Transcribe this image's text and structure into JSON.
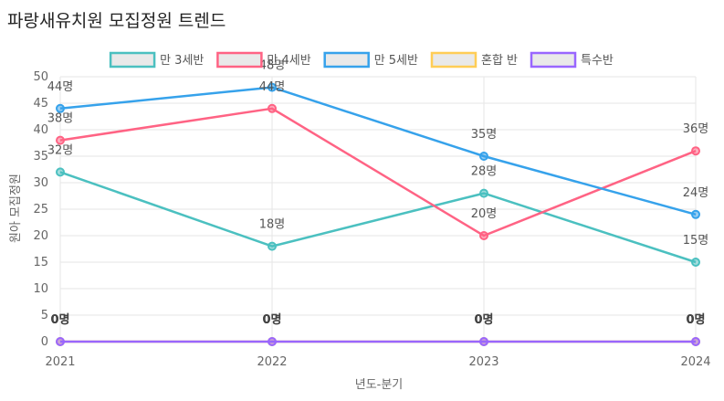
{
  "page": {
    "title": "파랑새유치원 모집정원 트렌드"
  },
  "chart_data": {
    "type": "line",
    "title": "파랑새유치원 모집정원 트렌드",
    "xlabel": "년도-분기",
    "ylabel": "원아 모집정원",
    "categories": [
      "2021",
      "2022",
      "2023",
      "2024"
    ],
    "ylim": [
      0,
      50
    ],
    "yticks": [
      0,
      5,
      10,
      15,
      20,
      25,
      30,
      35,
      40,
      45,
      50
    ],
    "grid": true,
    "legend_position": "top",
    "unit_suffix": "명",
    "series": [
      {
        "name": "만 3세반",
        "color": "#4bc0c0",
        "values": [
          32,
          18,
          28,
          15
        ]
      },
      {
        "name": "만 4세반",
        "color": "#ff6384",
        "values": [
          38,
          44,
          20,
          36
        ]
      },
      {
        "name": "만 5세반",
        "color": "#36a2eb",
        "values": [
          44,
          48,
          35,
          24
        ]
      },
      {
        "name": "혼합 반",
        "color": "#ffcd56",
        "values": [
          0,
          0,
          0,
          0
        ]
      },
      {
        "name": "특수반",
        "color": "#9966ff",
        "values": [
          0,
          0,
          0,
          0
        ]
      }
    ]
  }
}
